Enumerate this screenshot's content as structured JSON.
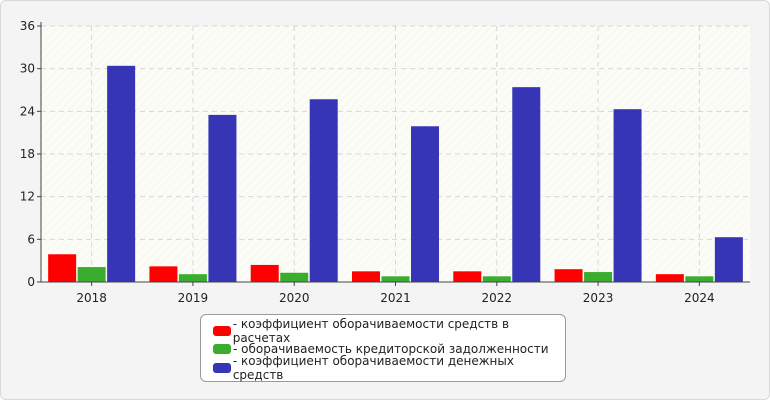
{
  "chart_data": {
    "type": "bar",
    "categories": [
      "2018",
      "2019",
      "2020",
      "2021",
      "2022",
      "2023",
      "2024"
    ],
    "series": [
      {
        "name": "- коэффициент оборачиваемости средств в расчетах",
        "color": "#ff0000",
        "values": [
          3.9,
          2.2,
          2.4,
          1.5,
          1.5,
          1.8,
          1.1
        ]
      },
      {
        "name": "- оборачиваемость кредиторской задолженности",
        "color": "#3aad2f",
        "values": [
          2.1,
          1.1,
          1.3,
          0.8,
          0.8,
          1.4,
          0.8
        ]
      },
      {
        "name": "- коэффициент оборачиваемости денежных средств",
        "color": "#3535b5",
        "values": [
          30.4,
          23.5,
          25.7,
          21.9,
          27.4,
          24.3,
          6.3
        ]
      }
    ],
    "yticks": [
      "0",
      "6",
      "12",
      "18",
      "24",
      "30",
      "36"
    ],
    "ylim": [
      0,
      36
    ],
    "grid": true,
    "legend_position": "bottom",
    "title": "",
    "xlabel": "",
    "ylabel": ""
  }
}
